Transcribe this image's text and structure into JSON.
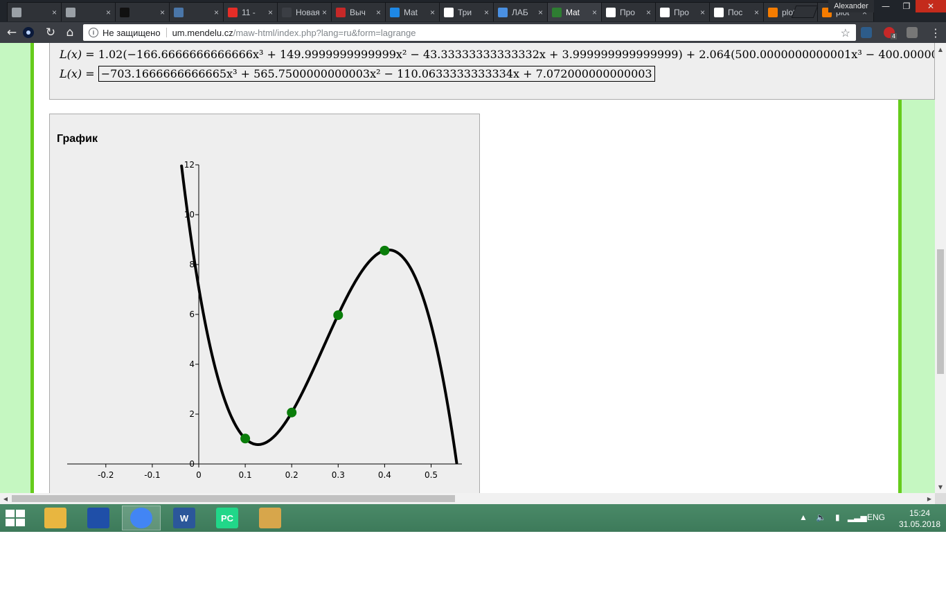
{
  "browser": {
    "tabs": [
      {
        "title": "",
        "icon": "page-icon",
        "color": "#9aa0a6"
      },
      {
        "title": "",
        "icon": "page-icon",
        "color": "#9aa0a6"
      },
      {
        "title": "",
        "icon": "info-i-icon",
        "color": "#111111"
      },
      {
        "title": "",
        "icon": "vk-icon",
        "color": "#4a76a8"
      },
      {
        "title": "11 -",
        "icon": "youtube-icon",
        "color": "#e52d27"
      },
      {
        "title": "Новая в",
        "icon": "none",
        "color": "#3b3e44"
      },
      {
        "title": "Выч",
        "icon": "red-logo-icon",
        "color": "#c62828"
      },
      {
        "title": "Mat",
        "icon": "s-logo-icon",
        "color": "#1e88e5"
      },
      {
        "title": "Три",
        "icon": "dots-icon",
        "color": "#ffffff"
      },
      {
        "title": "ЛАБ",
        "icon": "s-slash-icon",
        "color": "#4a90e2"
      },
      {
        "title": "Mat",
        "icon": "mendelu-icon",
        "color": "#2e7d32",
        "active": true
      },
      {
        "title": "Про",
        "icon": "page-icon",
        "color": "#ffffff"
      },
      {
        "title": "Про",
        "icon": "page-icon",
        "color": "#ffffff"
      },
      {
        "title": "Пос",
        "icon": "page-icon",
        "color": "#ffffff"
      },
      {
        "title": "plot",
        "icon": "gear-orange-icon",
        "color": "#f57c00"
      },
      {
        "title": "plot",
        "icon": "gear-orange-icon",
        "color": "#f57c00"
      }
    ],
    "profile_name": "Alexander",
    "security_label": "Не защищено",
    "url_domain": "um.mendelu.cz",
    "url_path": "/maw-html/index.php?lang=ru&form=lagrange",
    "extension_badge": "4"
  },
  "page": {
    "formula_line1_prefix": "L(x) = ",
    "formula_line1_body": "1.02(−166.6666666666666x³ + 149.9999999999999x² − 43.33333333333332x + 3.999999999999999) + 2.064(500.0000000000001x³ − 400.0000000000001x² + 95.00000",
    "formula_line2_prefix": "L(x) = ",
    "formula_line2_result": "−703.1666666666665x³ + 565.7500000000003x² − 110.0633333333334x + 7.072000000000003",
    "graph_title": "График"
  },
  "chart_data": {
    "type": "line",
    "title": "",
    "xlabel": "",
    "ylabel": "",
    "xlim": [
      -0.2,
      0.55
    ],
    "ylim": [
      0,
      12
    ],
    "x_ticks": [
      "-0.2",
      "-0.1",
      "0",
      "0.1",
      "0.2",
      "0.3",
      "0.4",
      "0.5"
    ],
    "y_ticks": [
      "0",
      "2",
      "4",
      "6",
      "8",
      "10",
      "12"
    ],
    "curve": {
      "polynomial": [
        -703.1666666666665,
        565.7500000000003,
        -110.0633333333334,
        7.072000000000003
      ],
      "x_range": [
        -0.037,
        0.555
      ],
      "color": "#000000"
    },
    "points": [
      {
        "x": 0.1,
        "y": 1.02
      },
      {
        "x": 0.2,
        "y": 2.064
      },
      {
        "x": 0.3,
        "y": 5.97
      },
      {
        "x": 0.4,
        "y": 8.56
      }
    ],
    "point_color": "#0a7d0a",
    "grid": false
  },
  "taskbar": {
    "apps": [
      {
        "name": "file-explorer",
        "label": "",
        "color": "#e8b640"
      },
      {
        "name": "save-app",
        "label": "",
        "color": "#1f4fa8"
      },
      {
        "name": "chrome",
        "label": "",
        "color": "#4285f4",
        "active": true
      },
      {
        "name": "word",
        "label": "W",
        "color": "#2b579a"
      },
      {
        "name": "pycharm",
        "label": "PC",
        "color": "#21d789"
      },
      {
        "name": "paint",
        "label": "",
        "color": "#d7a64b"
      }
    ],
    "language": "ENG",
    "time": "15:24",
    "date": "31.05.2018"
  }
}
